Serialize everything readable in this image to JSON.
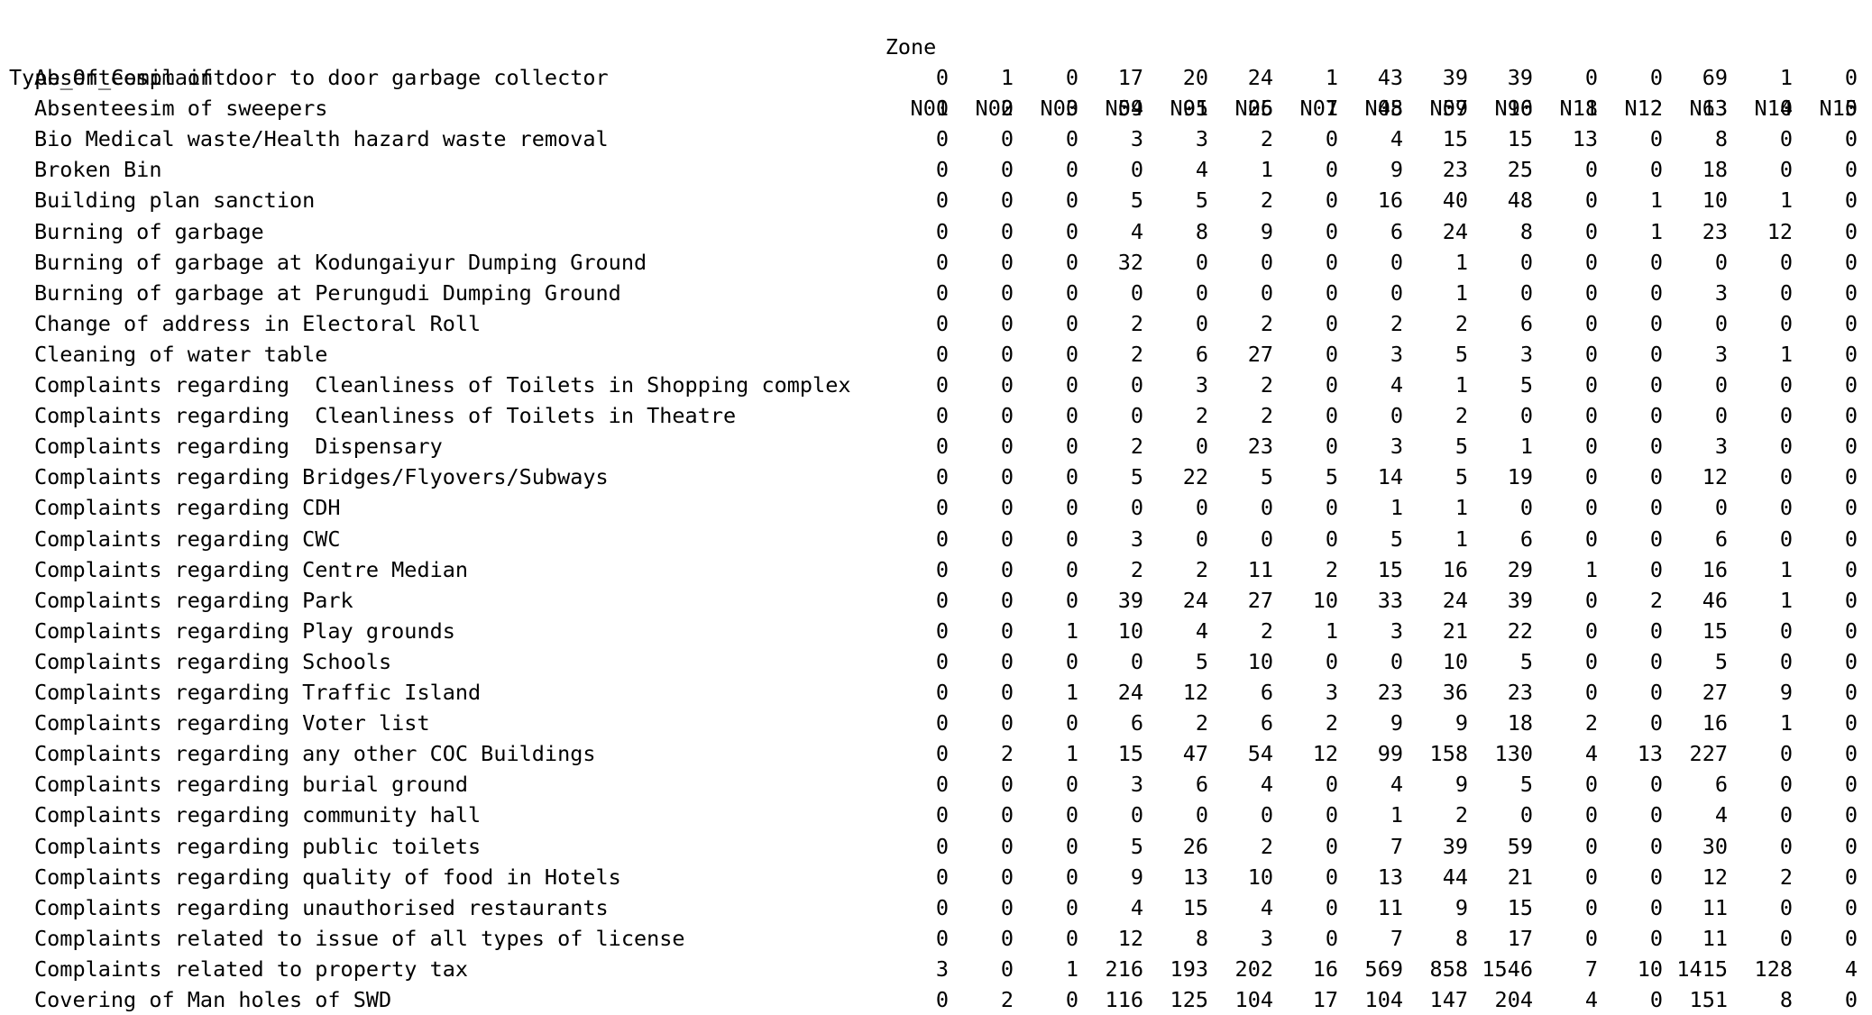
{
  "table": {
    "zone_label": "Zone",
    "corner_label": "Type_Of_Complaint",
    "columns": [
      "N01",
      "N02",
      "N03",
      "N04",
      "N05",
      "N06",
      "N07",
      "N08",
      "N09",
      "N10",
      "N11",
      "N12",
      "N13",
      "N14",
      "N15"
    ],
    "rows": [
      {
        "label": "Absenteesim of door to door garbage collector",
        "values": [
          0,
          1,
          0,
          17,
          20,
          24,
          1,
          43,
          39,
          39,
          0,
          0,
          69,
          1,
          0
        ]
      },
      {
        "label": "Absenteesim of sweepers",
        "values": [
          0,
          0,
          0,
          59,
          91,
          25,
          1,
          45,
          57,
          96,
          8,
          2,
          63,
          0,
          0
        ]
      },
      {
        "label": "Bio Medical waste/Health hazard waste removal",
        "values": [
          0,
          0,
          0,
          3,
          3,
          2,
          0,
          4,
          15,
          15,
          13,
          0,
          8,
          0,
          0
        ]
      },
      {
        "label": "Broken Bin",
        "values": [
          0,
          0,
          0,
          0,
          4,
          1,
          0,
          9,
          23,
          25,
          0,
          0,
          18,
          0,
          0
        ]
      },
      {
        "label": "Building plan sanction",
        "values": [
          0,
          0,
          0,
          5,
          5,
          2,
          0,
          16,
          40,
          48,
          0,
          1,
          10,
          1,
          0
        ]
      },
      {
        "label": "Burning of garbage",
        "values": [
          0,
          0,
          0,
          4,
          8,
          9,
          0,
          6,
          24,
          8,
          0,
          1,
          23,
          12,
          0
        ]
      },
      {
        "label": "Burning of garbage at Kodungaiyur Dumping Ground",
        "values": [
          0,
          0,
          0,
          32,
          0,
          0,
          0,
          0,
          1,
          0,
          0,
          0,
          0,
          0,
          0
        ]
      },
      {
        "label": "Burning of garbage at Perungudi Dumping Ground",
        "values": [
          0,
          0,
          0,
          0,
          0,
          0,
          0,
          0,
          1,
          0,
          0,
          0,
          3,
          0,
          0
        ]
      },
      {
        "label": "Change of address in Electoral Roll",
        "values": [
          0,
          0,
          0,
          2,
          0,
          2,
          0,
          2,
          2,
          6,
          0,
          0,
          0,
          0,
          0
        ]
      },
      {
        "label": "Cleaning of water table",
        "values": [
          0,
          0,
          0,
          2,
          6,
          27,
          0,
          3,
          5,
          3,
          0,
          0,
          3,
          1,
          0
        ]
      },
      {
        "label": "Complaints regarding  Cleanliness of Toilets in Shopping complex",
        "values": [
          0,
          0,
          0,
          0,
          3,
          2,
          0,
          4,
          1,
          5,
          0,
          0,
          0,
          0,
          0
        ]
      },
      {
        "label": "Complaints regarding  Cleanliness of Toilets in Theatre",
        "values": [
          0,
          0,
          0,
          0,
          2,
          2,
          0,
          0,
          2,
          0,
          0,
          0,
          0,
          0,
          0
        ]
      },
      {
        "label": "Complaints regarding  Dispensary",
        "values": [
          0,
          0,
          0,
          2,
          0,
          23,
          0,
          3,
          5,
          1,
          0,
          0,
          3,
          0,
          0
        ]
      },
      {
        "label": "Complaints regarding Bridges/Flyovers/Subways",
        "values": [
          0,
          0,
          0,
          5,
          22,
          5,
          5,
          14,
          5,
          19,
          0,
          0,
          12,
          0,
          0
        ]
      },
      {
        "label": "Complaints regarding CDH",
        "values": [
          0,
          0,
          0,
          0,
          0,
          0,
          0,
          1,
          1,
          0,
          0,
          0,
          0,
          0,
          0
        ]
      },
      {
        "label": "Complaints regarding CWC",
        "values": [
          0,
          0,
          0,
          3,
          0,
          0,
          0,
          5,
          1,
          6,
          0,
          0,
          6,
          0,
          0
        ]
      },
      {
        "label": "Complaints regarding Centre Median",
        "values": [
          0,
          0,
          0,
          2,
          2,
          11,
          2,
          15,
          16,
          29,
          1,
          0,
          16,
          1,
          0
        ]
      },
      {
        "label": "Complaints regarding Park",
        "values": [
          0,
          0,
          0,
          39,
          24,
          27,
          10,
          33,
          24,
          39,
          0,
          2,
          46,
          1,
          0
        ]
      },
      {
        "label": "Complaints regarding Play grounds",
        "values": [
          0,
          0,
          1,
          10,
          4,
          2,
          1,
          3,
          21,
          22,
          0,
          0,
          15,
          0,
          0
        ]
      },
      {
        "label": "Complaints regarding Schools",
        "values": [
          0,
          0,
          0,
          0,
          5,
          10,
          0,
          0,
          10,
          5,
          0,
          0,
          5,
          0,
          0
        ]
      },
      {
        "label": "Complaints regarding Traffic Island",
        "values": [
          0,
          0,
          1,
          24,
          12,
          6,
          3,
          23,
          36,
          23,
          0,
          0,
          27,
          9,
          0
        ]
      },
      {
        "label": "Complaints regarding Voter list",
        "values": [
          0,
          0,
          0,
          6,
          2,
          6,
          2,
          9,
          9,
          18,
          2,
          0,
          16,
          1,
          0
        ]
      },
      {
        "label": "Complaints regarding any other COC Buildings",
        "values": [
          0,
          2,
          1,
          15,
          47,
          54,
          12,
          99,
          158,
          130,
          4,
          13,
          227,
          0,
          0
        ]
      },
      {
        "label": "Complaints regarding burial ground",
        "values": [
          0,
          0,
          0,
          3,
          6,
          4,
          0,
          4,
          9,
          5,
          0,
          0,
          6,
          0,
          0
        ]
      },
      {
        "label": "Complaints regarding community hall",
        "values": [
          0,
          0,
          0,
          0,
          0,
          0,
          0,
          1,
          2,
          0,
          0,
          0,
          4,
          0,
          0
        ]
      },
      {
        "label": "Complaints regarding public toilets",
        "values": [
          0,
          0,
          0,
          5,
          26,
          2,
          0,
          7,
          39,
          59,
          0,
          0,
          30,
          0,
          0
        ]
      },
      {
        "label": "Complaints regarding quality of food in Hotels",
        "values": [
          0,
          0,
          0,
          9,
          13,
          10,
          0,
          13,
          44,
          21,
          0,
          0,
          12,
          2,
          0
        ]
      },
      {
        "label": "Complaints regarding unauthorised restaurants",
        "values": [
          0,
          0,
          0,
          4,
          15,
          4,
          0,
          11,
          9,
          15,
          0,
          0,
          11,
          0,
          0
        ]
      },
      {
        "label": "Complaints related to issue of all types of license",
        "values": [
          0,
          0,
          0,
          12,
          8,
          3,
          0,
          7,
          8,
          17,
          0,
          0,
          11,
          0,
          0
        ]
      },
      {
        "label": "Complaints related to property tax",
        "values": [
          3,
          0,
          1,
          216,
          193,
          202,
          16,
          569,
          858,
          1546,
          7,
          10,
          1415,
          128,
          4
        ]
      },
      {
        "label": "Covering of Man holes of SWD",
        "values": [
          0,
          2,
          0,
          116,
          125,
          104,
          17,
          104,
          147,
          204,
          4,
          0,
          151,
          8,
          0
        ]
      }
    ]
  }
}
